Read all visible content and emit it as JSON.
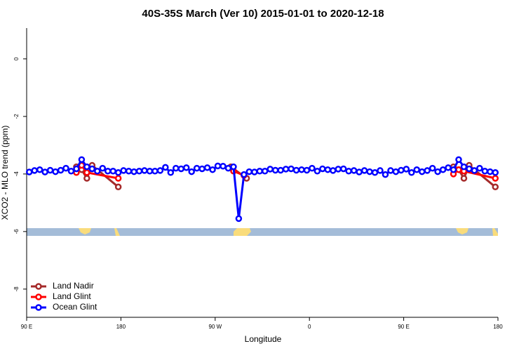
{
  "chart_data": {
    "type": "line",
    "title": "40S-35S March (Ver 10)   2015-01-01 to 2020-12-18",
    "x_label": "Longitude",
    "y_label": "XCO2 - MLO trend (ppm)",
    "xlim": [
      90,
      540
    ],
    "ylim": [
      -8.98,
      1.07
    ],
    "xticks": [
      {
        "value": 90,
        "label": "90 E"
      },
      180,
      {
        "value": 270,
        "label": "90 W"
      },
      {
        "value": 360,
        "label": "0"
      },
      {
        "value": 450,
        "label": "90 E"
      },
      {
        "value": 540,
        "label": "180"
      }
    ],
    "yticks": [
      0,
      -2,
      -4,
      -6,
      -8
    ],
    "legend": "bottom-left",
    "series": [
      {
        "name": "Land Nadir",
        "color": "#a52a2a",
        "x": [
          137.5,
          142.5,
          147.5,
          152.5,
          177.5,
          285,
          300,
          497.5,
          502.5,
          507.5,
          512.5,
          537.5
        ],
        "values": [
          -3.75,
          -3.85,
          -4.15,
          -3.7,
          -4.45,
          -3.75,
          -4.15,
          -3.75,
          -3.85,
          -4.15,
          -3.7,
          -4.45
        ]
      },
      {
        "name": "Land Glint",
        "color": "#ff0000",
        "x": [
          137.5,
          142.5,
          147.5,
          177.5,
          287.5,
          297.5,
          497.5,
          502.5,
          507.5,
          537.5
        ],
        "values": [
          -3.95,
          -3.7,
          -3.95,
          -4.15,
          -3.9,
          -4.05,
          -4.0,
          -3.85,
          -3.9,
          -4.15
        ]
      },
      {
        "name": "Ocean Glint",
        "color": "#0000ff",
        "x": [
          92.5,
          97.5,
          102.5,
          107.5,
          112.5,
          117.5,
          122.5,
          127.5,
          132.5,
          137.5,
          142.5,
          147.5,
          152.5,
          157.5,
          162.5,
          167.5,
          172.5,
          177.5,
          182.5,
          187.5,
          192.5,
          197.5,
          202.5,
          207.5,
          212.5,
          217.5,
          222.5,
          227.5,
          232.5,
          237.5,
          242.5,
          247.5,
          252.5,
          257.5,
          262.5,
          267.5,
          272.5,
          277.5,
          282.5,
          287.5,
          292.5,
          297.5,
          302.5,
          307.5,
          312.5,
          317.5,
          322.5,
          327.5,
          332.5,
          337.5,
          342.5,
          347.5,
          352.5,
          357.5,
          362.5,
          367.5,
          372.5,
          377.5,
          382.5,
          387.5,
          392.5,
          397.5,
          402.5,
          407.5,
          412.5,
          417.5,
          422.5,
          427.5,
          432.5,
          437.5,
          442.5,
          447.5,
          452.5,
          457.5,
          462.5,
          467.5,
          472.5,
          477.5,
          482.5,
          487.5,
          492.5,
          497.5,
          502.5,
          507.5,
          512.5,
          517.5,
          522.5,
          527.5,
          532.5,
          537.5
        ],
        "values": [
          -3.93,
          -3.88,
          -3.85,
          -3.93,
          -3.87,
          -3.92,
          -3.87,
          -3.8,
          -3.9,
          -3.82,
          -3.5,
          -3.75,
          -3.82,
          -3.9,
          -3.8,
          -3.9,
          -3.9,
          -3.95,
          -3.88,
          -3.9,
          -3.92,
          -3.9,
          -3.88,
          -3.9,
          -3.9,
          -3.88,
          -3.77,
          -3.95,
          -3.8,
          -3.82,
          -3.78,
          -3.92,
          -3.8,
          -3.82,
          -3.78,
          -3.85,
          -3.72,
          -3.73,
          -3.8,
          -3.75,
          -5.55,
          -4.02,
          -3.92,
          -3.93,
          -3.9,
          -3.9,
          -3.83,
          -3.87,
          -3.87,
          -3.83,
          -3.82,
          -3.87,
          -3.85,
          -3.87,
          -3.8,
          -3.9,
          -3.82,
          -3.85,
          -3.88,
          -3.83,
          -3.82,
          -3.9,
          -3.88,
          -3.93,
          -3.88,
          -3.92,
          -3.95,
          -3.88,
          -4.02,
          -3.88,
          -3.92,
          -3.87,
          -3.83,
          -3.95,
          -3.85,
          -3.92,
          -3.88,
          -3.8,
          -3.92,
          -3.85,
          -3.78,
          -3.85,
          -3.5,
          -3.75,
          -3.82,
          -3.88,
          -3.8,
          -3.9,
          -3.92,
          -3.95
        ]
      }
    ]
  }
}
